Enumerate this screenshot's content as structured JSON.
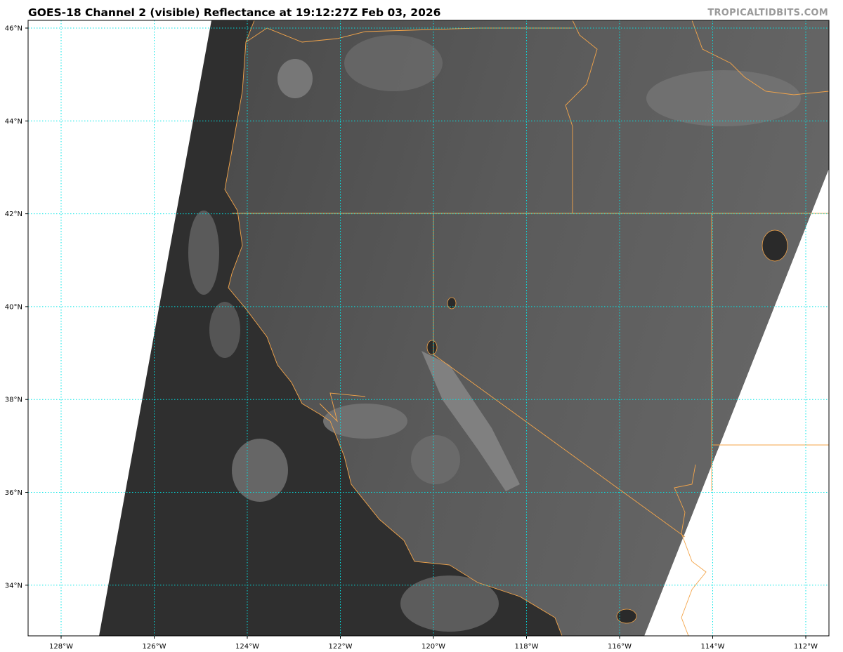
{
  "header": {
    "title": "GOES-18 Channel 2 (visible) Reflectance at 19:12:27Z Feb 03, 2026",
    "watermark": "TROPICALTIDBITS.COM"
  },
  "map": {
    "lat_labels": [
      "46°N",
      "44°N",
      "42°N",
      "40°N",
      "38°N",
      "36°N",
      "34°N"
    ],
    "lon_labels": [
      "128°W",
      "126°W",
      "124°W",
      "122°W",
      "120°W",
      "118°W",
      "116°W",
      "114°W",
      "112°W"
    ],
    "colors": {
      "gridline": "#00e5e5",
      "borders": "#f4a54a",
      "imagery_dark": "#2e2e2e",
      "imagery_land": "#555555",
      "background": "#ffffff"
    }
  }
}
